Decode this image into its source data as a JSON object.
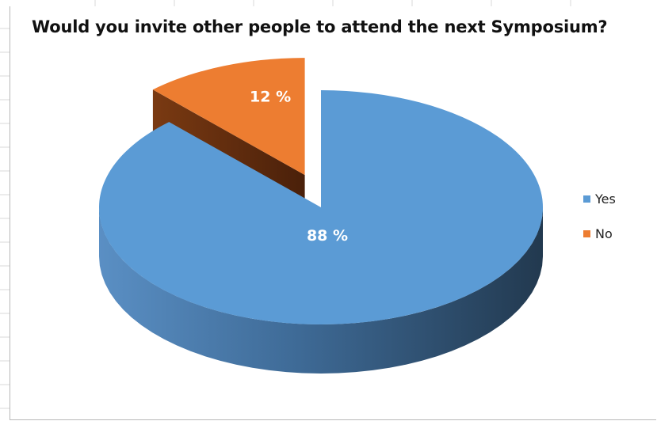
{
  "chart_data": {
    "type": "pie",
    "title": "Would you invite other people to attend the next Symposium?",
    "slices": [
      {
        "label": "Yes",
        "value": 88,
        "display": "88 %",
        "color": "#5b9bd5",
        "exploded": false
      },
      {
        "label": "No",
        "value": 12,
        "display": "12 %",
        "color": "#ed7d31",
        "exploded": true
      }
    ],
    "legend_position": "right",
    "style": "3d"
  }
}
